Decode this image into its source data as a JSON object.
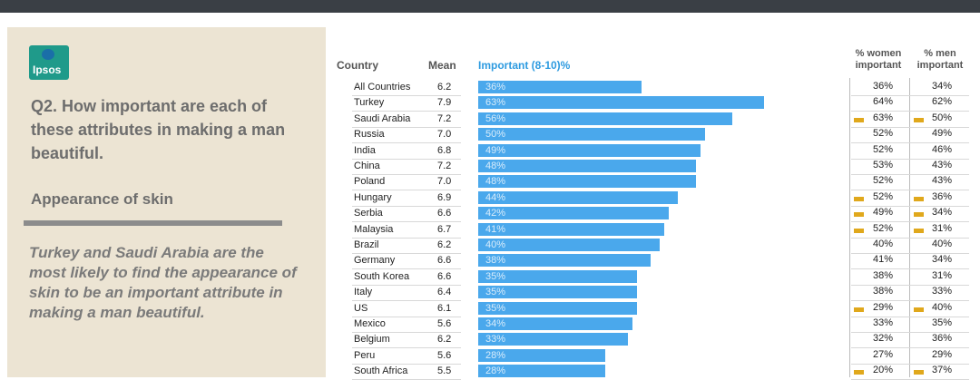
{
  "brand": {
    "logo": "Ipsos"
  },
  "left_panel": {
    "question": "Q2. How important are each of these attributes in making a man beautiful.",
    "subheading": "Appearance of skin",
    "insight": "Turkey and Saudi Arabia are the most likely to find the appearance of skin to be an important attribute in making a man beautiful."
  },
  "colors": {
    "bar": "#4aa8ec",
    "marker": "#e0a81c",
    "panel": "#ece4d3"
  },
  "chart_data": {
    "type": "bar",
    "orientation": "horizontal",
    "headers": {
      "country": "Country",
      "mean": "Mean",
      "important": "Important (8-10)%",
      "women": "% women important",
      "men": "% men important"
    },
    "xlim": [
      0,
      100
    ],
    "rows": [
      {
        "country": "All Countries",
        "mean": "6.2",
        "value": 36,
        "label": "36%",
        "women": "36%",
        "men": "34%",
        "women_marker": false,
        "men_marker": false
      },
      {
        "country": "Turkey",
        "mean": "7.9",
        "value": 63,
        "label": "63%",
        "women": "64%",
        "men": "62%",
        "women_marker": false,
        "men_marker": false
      },
      {
        "country": "Saudi Arabia",
        "mean": "7.2",
        "value": 56,
        "label": "56%",
        "women": "63%",
        "men": "50%",
        "women_marker": true,
        "men_marker": true
      },
      {
        "country": "Russia",
        "mean": "7.0",
        "value": 50,
        "label": "50%",
        "women": "52%",
        "men": "49%",
        "women_marker": false,
        "men_marker": false
      },
      {
        "country": "India",
        "mean": "6.8",
        "value": 49,
        "label": "49%",
        "women": "52%",
        "men": "46%",
        "women_marker": false,
        "men_marker": false
      },
      {
        "country": "China",
        "mean": "7.2",
        "value": 48,
        "label": "48%",
        "women": "53%",
        "men": "43%",
        "women_marker": false,
        "men_marker": false
      },
      {
        "country": "Poland",
        "mean": "7.0",
        "value": 48,
        "label": "48%",
        "women": "52%",
        "men": "43%",
        "women_marker": false,
        "men_marker": false
      },
      {
        "country": "Hungary",
        "mean": "6.9",
        "value": 44,
        "label": "44%",
        "women": "52%",
        "men": "36%",
        "women_marker": true,
        "men_marker": true
      },
      {
        "country": "Serbia",
        "mean": "6.6",
        "value": 42,
        "label": "42%",
        "women": "49%",
        "men": "34%",
        "women_marker": true,
        "men_marker": true
      },
      {
        "country": "Malaysia",
        "mean": "6.7",
        "value": 41,
        "label": "41%",
        "women": "52%",
        "men": "31%",
        "women_marker": true,
        "men_marker": true
      },
      {
        "country": "Brazil",
        "mean": "6.2",
        "value": 40,
        "label": "40%",
        "women": "40%",
        "men": "40%",
        "women_marker": false,
        "men_marker": false
      },
      {
        "country": "Germany",
        "mean": "6.6",
        "value": 38,
        "label": "38%",
        "women": "41%",
        "men": "34%",
        "women_marker": false,
        "men_marker": false
      },
      {
        "country": "South Korea",
        "mean": "6.6",
        "value": 35,
        "label": "35%",
        "women": "38%",
        "men": "31%",
        "women_marker": false,
        "men_marker": false
      },
      {
        "country": "Italy",
        "mean": "6.4",
        "value": 35,
        "label": "35%",
        "women": "38%",
        "men": "33%",
        "women_marker": false,
        "men_marker": false
      },
      {
        "country": "US",
        "mean": "6.1",
        "value": 35,
        "label": "35%",
        "women": "29%",
        "men": "40%",
        "women_marker": true,
        "men_marker": true
      },
      {
        "country": "Mexico",
        "mean": "5.6",
        "value": 34,
        "label": "34%",
        "women": "33%",
        "men": "35%",
        "women_marker": false,
        "men_marker": false
      },
      {
        "country": "Belgium",
        "mean": "6.2",
        "value": 33,
        "label": "33%",
        "women": "32%",
        "men": "36%",
        "women_marker": false,
        "men_marker": false
      },
      {
        "country": "Peru",
        "mean": "5.6",
        "value": 28,
        "label": "28%",
        "women": "27%",
        "men": "29%",
        "women_marker": false,
        "men_marker": false
      },
      {
        "country": "South Africa",
        "mean": "5.5",
        "value": 28,
        "label": "28%",
        "women": "20%",
        "men": "37%",
        "women_marker": true,
        "men_marker": true
      }
    ]
  }
}
